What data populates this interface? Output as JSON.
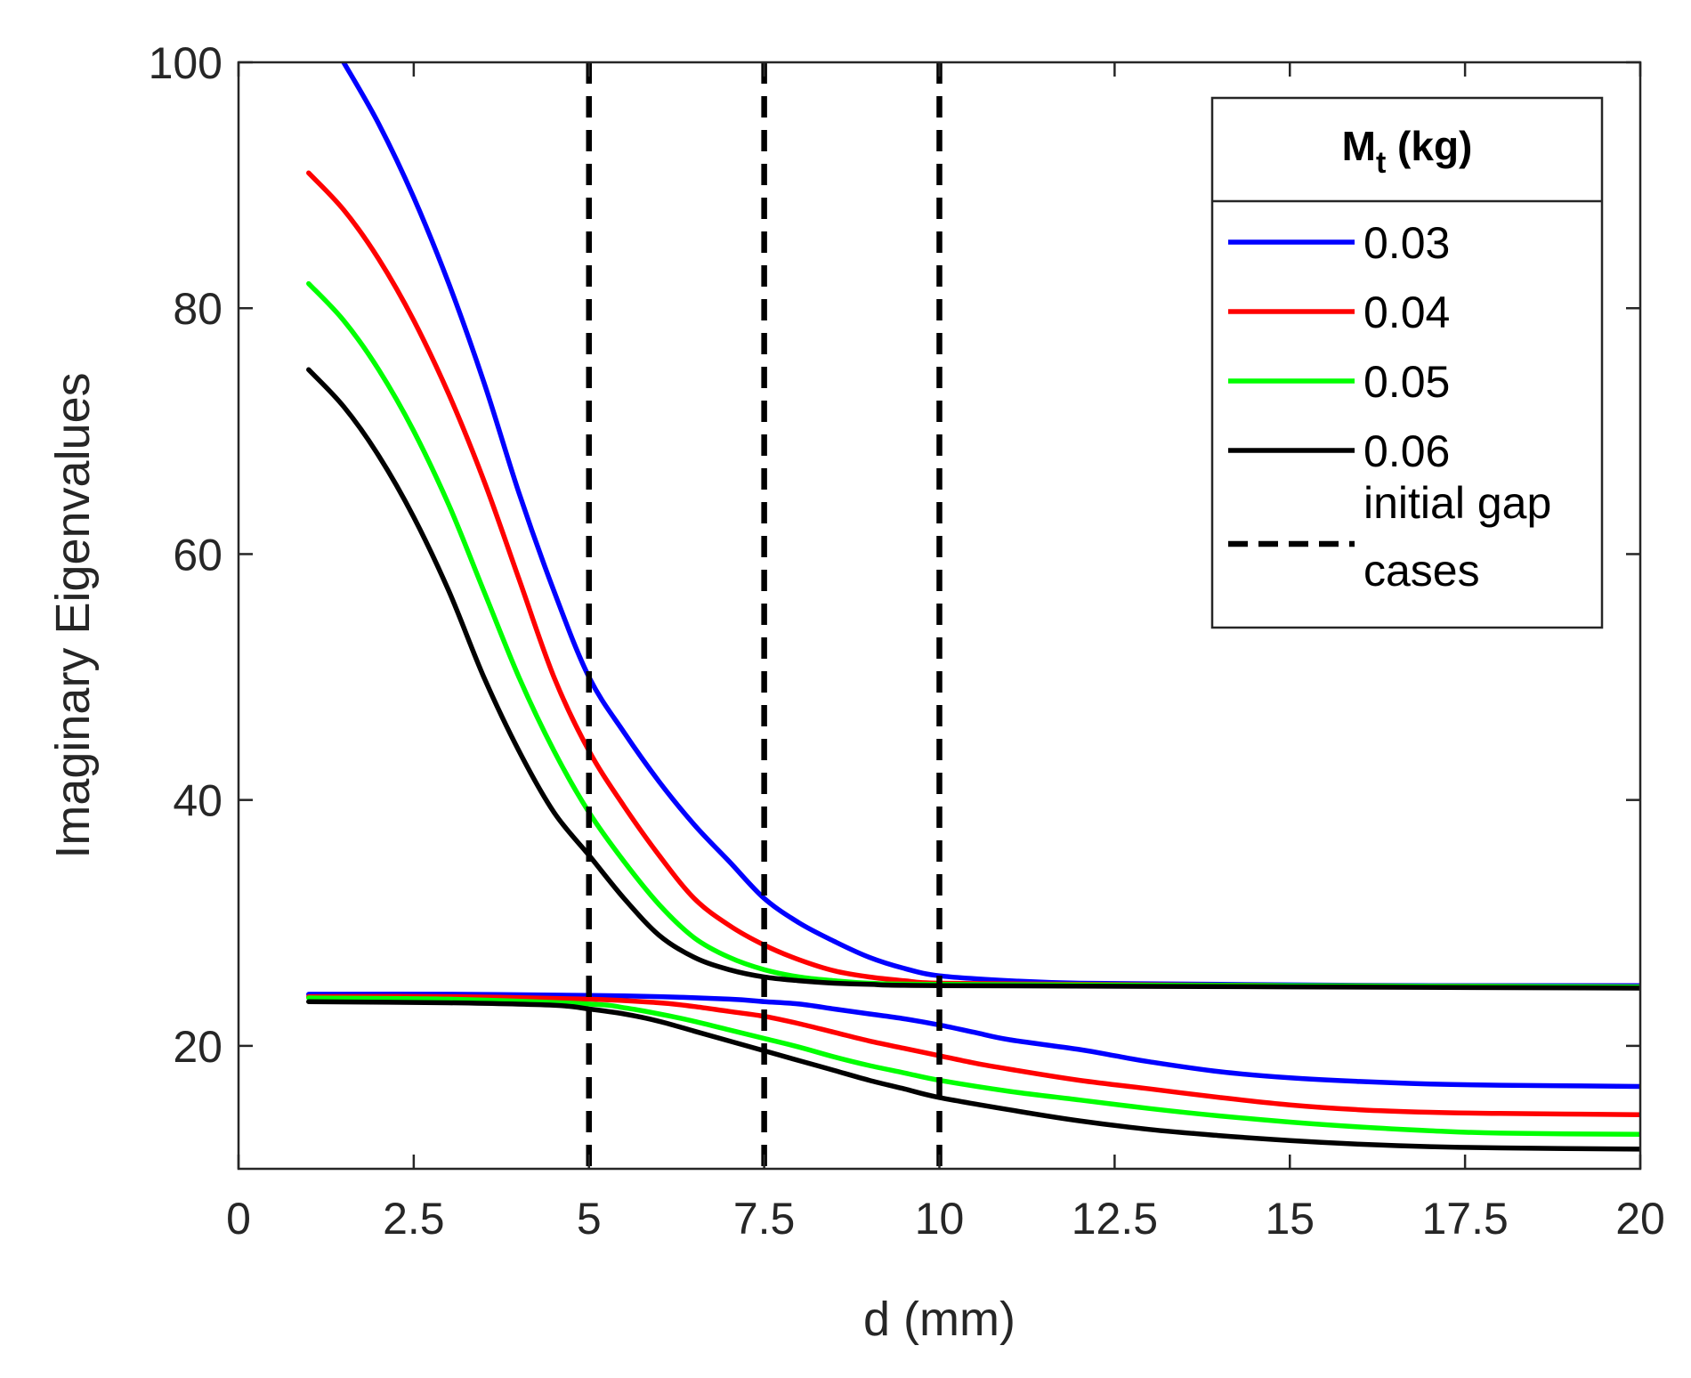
{
  "chart_data": {
    "type": "line",
    "title": "",
    "xlabel": "d (mm)",
    "ylabel": "Imaginary Eigenvalues",
    "xlim": [
      0,
      20
    ],
    "ylim": [
      10,
      100
    ],
    "x_ticks": [
      0,
      2.5,
      5,
      7.5,
      10,
      12.5,
      15,
      17.5,
      20
    ],
    "x_tick_labels": [
      "0",
      "2.5",
      "5",
      "7.5",
      "10",
      "12.5",
      "15",
      "17.5",
      "20"
    ],
    "y_ticks": [
      20,
      40,
      60,
      80,
      100
    ],
    "y_tick_labels": [
      "20",
      "40",
      "60",
      "80",
      "100"
    ],
    "grid": false,
    "legend": {
      "title_main": "M",
      "title_sub": "t",
      "title_unit": " (kg)",
      "placement": "top-right"
    },
    "series": [
      {
        "name": "0.03",
        "color": "#0000ff",
        "style": "solid",
        "upper": [
          [
            1.5,
            100
          ],
          [
            2,
            95
          ],
          [
            2.5,
            89
          ],
          [
            3,
            82
          ],
          [
            3.5,
            74
          ],
          [
            4,
            65
          ],
          [
            4.5,
            57
          ],
          [
            5,
            50
          ],
          [
            5.5,
            45.5
          ],
          [
            6,
            41.5
          ],
          [
            6.5,
            38
          ],
          [
            7,
            35
          ],
          [
            7.5,
            32
          ],
          [
            8,
            30
          ],
          [
            8.5,
            28.5
          ],
          [
            9,
            27.2
          ],
          [
            9.5,
            26.3
          ],
          [
            10,
            25.7
          ],
          [
            11,
            25.3
          ],
          [
            12,
            25.1
          ],
          [
            14,
            25
          ],
          [
            17,
            24.9
          ],
          [
            20,
            24.9
          ]
        ],
        "lower": [
          [
            1,
            24.2
          ],
          [
            3,
            24.2
          ],
          [
            5,
            24.1
          ],
          [
            6,
            24
          ],
          [
            7,
            23.8
          ],
          [
            7.5,
            23.6
          ],
          [
            8,
            23.4
          ],
          [
            8.5,
            23
          ],
          [
            9,
            22.6
          ],
          [
            9.5,
            22.2
          ],
          [
            10,
            21.7
          ],
          [
            10.5,
            21.1
          ],
          [
            11,
            20.5
          ],
          [
            12,
            19.7
          ],
          [
            12.5,
            19.2
          ],
          [
            13,
            18.7
          ],
          [
            14,
            17.9
          ],
          [
            15,
            17.4
          ],
          [
            16,
            17.1
          ],
          [
            17,
            16.9
          ],
          [
            18,
            16.8
          ],
          [
            20,
            16.7
          ]
        ]
      },
      {
        "name": "0.04",
        "color": "#ff0000",
        "style": "solid",
        "upper": [
          [
            1,
            91
          ],
          [
            1.5,
            88
          ],
          [
            2,
            84
          ],
          [
            2.5,
            79
          ],
          [
            3,
            73
          ],
          [
            3.5,
            66
          ],
          [
            4,
            58
          ],
          [
            4.5,
            50
          ],
          [
            5,
            44
          ],
          [
            5.5,
            39.5
          ],
          [
            6,
            35.5
          ],
          [
            6.5,
            32
          ],
          [
            7,
            29.8
          ],
          [
            7.5,
            28.2
          ],
          [
            8,
            27
          ],
          [
            8.5,
            26.1
          ],
          [
            9,
            25.6
          ],
          [
            9.5,
            25.3
          ],
          [
            10,
            25.1
          ],
          [
            12,
            25
          ],
          [
            15,
            24.9
          ],
          [
            20,
            24.8
          ]
        ],
        "lower": [
          [
            1,
            24
          ],
          [
            3,
            24
          ],
          [
            5,
            23.8
          ],
          [
            6,
            23.5
          ],
          [
            6.5,
            23.2
          ],
          [
            7,
            22.8
          ],
          [
            7.5,
            22.4
          ],
          [
            8,
            21.8
          ],
          [
            8.5,
            21.1
          ],
          [
            9,
            20.4
          ],
          [
            9.5,
            19.8
          ],
          [
            10,
            19.2
          ],
          [
            10.5,
            18.6
          ],
          [
            11,
            18.1
          ],
          [
            12,
            17.2
          ],
          [
            13,
            16.5
          ],
          [
            14,
            15.8
          ],
          [
            15,
            15.2
          ],
          [
            16,
            14.8
          ],
          [
            17,
            14.6
          ],
          [
            18,
            14.5
          ],
          [
            20,
            14.4
          ]
        ]
      },
      {
        "name": "0.05",
        "color": "#00ff00",
        "style": "solid",
        "upper": [
          [
            1,
            82
          ],
          [
            1.5,
            79
          ],
          [
            2,
            75
          ],
          [
            2.5,
            70
          ],
          [
            3,
            64
          ],
          [
            3.5,
            57
          ],
          [
            4,
            50
          ],
          [
            4.5,
            44
          ],
          [
            5,
            39
          ],
          [
            5.5,
            35
          ],
          [
            6,
            31.5
          ],
          [
            6.5,
            28.8
          ],
          [
            7,
            27.2
          ],
          [
            7.5,
            26.2
          ],
          [
            8,
            25.6
          ],
          [
            8.5,
            25.3
          ],
          [
            9,
            25.1
          ],
          [
            10,
            25
          ],
          [
            15,
            24.9
          ],
          [
            20,
            24.8
          ]
        ],
        "lower": [
          [
            1,
            23.9
          ],
          [
            3,
            23.8
          ],
          [
            5,
            23.4
          ],
          [
            5.5,
            23.1
          ],
          [
            6,
            22.6
          ],
          [
            6.5,
            22
          ],
          [
            7,
            21.3
          ],
          [
            7.5,
            20.6
          ],
          [
            8,
            19.9
          ],
          [
            8.5,
            19.1
          ],
          [
            9,
            18.4
          ],
          [
            9.5,
            17.8
          ],
          [
            10,
            17.2
          ],
          [
            11,
            16.3
          ],
          [
            12,
            15.6
          ],
          [
            13,
            14.9
          ],
          [
            14,
            14.3
          ],
          [
            15,
            13.8
          ],
          [
            16,
            13.4
          ],
          [
            17,
            13.1
          ],
          [
            18,
            12.9
          ],
          [
            20,
            12.8
          ]
        ]
      },
      {
        "name": "0.06",
        "color": "#000000",
        "style": "solid",
        "upper": [
          [
            1,
            75
          ],
          [
            1.5,
            72
          ],
          [
            2,
            68
          ],
          [
            2.5,
            63
          ],
          [
            3,
            57
          ],
          [
            3.5,
            50
          ],
          [
            4,
            44
          ],
          [
            4.5,
            39
          ],
          [
            5,
            35.5
          ],
          [
            5.5,
            32
          ],
          [
            6,
            29
          ],
          [
            6.5,
            27.2
          ],
          [
            7,
            26.2
          ],
          [
            7.5,
            25.6
          ],
          [
            8,
            25.3
          ],
          [
            8.5,
            25.1
          ],
          [
            9,
            25
          ],
          [
            10,
            24.9
          ],
          [
            15,
            24.8
          ],
          [
            20,
            24.7
          ]
        ],
        "lower": [
          [
            1,
            23.6
          ],
          [
            3,
            23.5
          ],
          [
            4.5,
            23.3
          ],
          [
            5,
            23
          ],
          [
            5.5,
            22.6
          ],
          [
            6,
            22
          ],
          [
            6.5,
            21.2
          ],
          [
            7,
            20.4
          ],
          [
            7.5,
            19.6
          ],
          [
            8,
            18.8
          ],
          [
            8.5,
            18
          ],
          [
            9,
            17.2
          ],
          [
            9.5,
            16.5
          ],
          [
            10,
            15.8
          ],
          [
            11,
            14.8
          ],
          [
            12,
            13.9
          ],
          [
            13,
            13.2
          ],
          [
            14,
            12.7
          ],
          [
            15,
            12.3
          ],
          [
            16,
            12
          ],
          [
            17,
            11.8
          ],
          [
            18,
            11.7
          ],
          [
            20,
            11.6
          ]
        ]
      },
      {
        "name_line1": "initial gap",
        "name_line2": "cases",
        "color": "#000000",
        "style": "dashed",
        "vlines": [
          5,
          7.5,
          10
        ]
      }
    ]
  }
}
